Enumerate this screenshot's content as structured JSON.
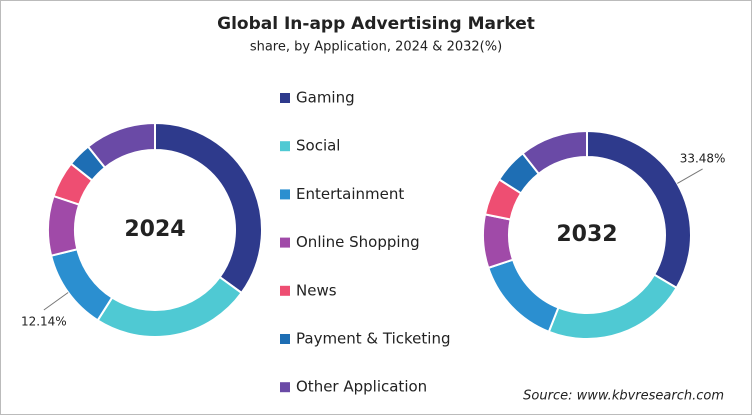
{
  "title": "Global In-app Advertising Market",
  "subtitle": "share, by Application, 2024 & 2032(%)",
  "source": "Source: www.kbvresearch.com",
  "chart_data": [
    {
      "type": "pie",
      "label": "2024",
      "categories": [
        "Gaming",
        "Social",
        "Entertainment",
        "Online Shopping",
        "News",
        "Payment & Ticketing",
        "Other Application"
      ],
      "colors": [
        "#2e3a8c",
        "#4fc9d3",
        "#2b8fd0",
        "#a04aa8",
        "#ee4e72",
        "#1e6eb4",
        "#6a4aa6"
      ],
      "values": [
        35,
        24,
        12.14,
        9,
        5.5,
        3.6,
        10.76
      ],
      "value_labels": [
        null,
        null,
        "12.14%",
        null,
        null,
        null,
        null
      ]
    },
    {
      "type": "pie",
      "label": "2032",
      "categories": [
        "Gaming",
        "Social",
        "Entertainment",
        "Online Shopping",
        "News",
        "Payment & Ticketing",
        "Other Application"
      ],
      "colors": [
        "#2e3a8c",
        "#4fc9d3",
        "#2b8fd0",
        "#a04aa8",
        "#ee4e72",
        "#1e6eb4",
        "#6a4aa6"
      ],
      "values": [
        33.48,
        22.5,
        13.9,
        8.3,
        5.8,
        5.4,
        10.62
      ],
      "value_labels": [
        "33.48%",
        null,
        null,
        null,
        null,
        null,
        null
      ]
    }
  ]
}
